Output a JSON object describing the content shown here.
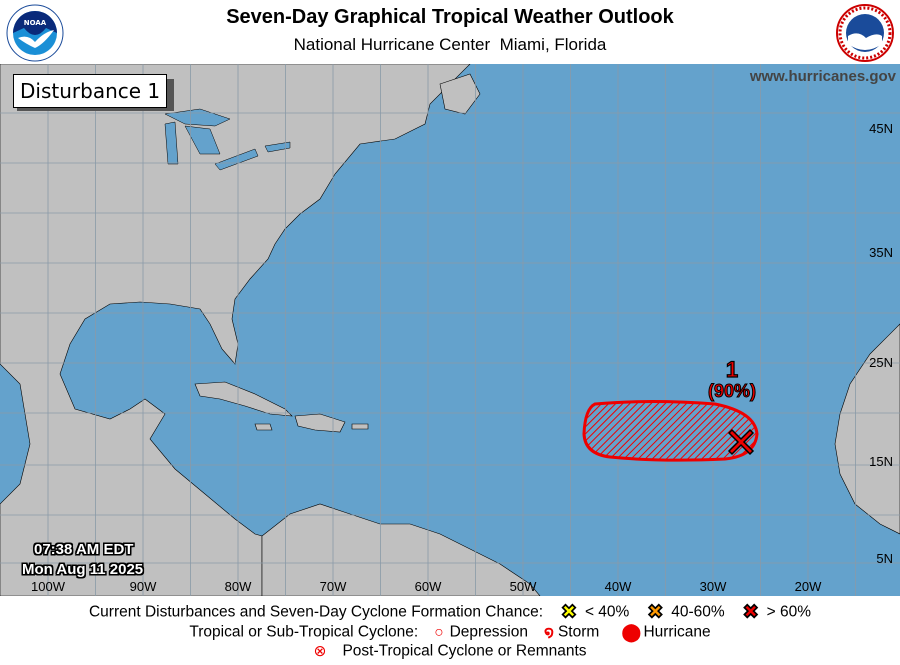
{
  "header": {
    "title": "Seven-Day Graphical Tropical Weather Outlook",
    "subtitle": "National Hurricane Center  Miami, Florida",
    "left_logo": "NOAA",
    "right_logo": "NATIONAL WEATHER SERVICE"
  },
  "map": {
    "panel_label": "Disturbance 1",
    "website": "www.hurricanes.gov",
    "timestamp_time": "07:38 AM EDT",
    "timestamp_date": "Mon Aug 11 2025",
    "lon_labels": [
      "100W",
      "90W",
      "80W",
      "70W",
      "60W",
      "50W",
      "40W",
      "30W",
      "20W"
    ],
    "lat_labels": [
      "45N",
      "35N",
      "25N",
      "15N",
      "5N"
    ],
    "colors": {
      "ocean": "#64a2cc",
      "land": "#c0c0c0",
      "grid": "#8a9aa8",
      "high_chance": "#e00000"
    },
    "disturbances": [
      {
        "id": "1",
        "chance": "(90%)",
        "category": "> 60%",
        "marker": "x-icon"
      }
    ]
  },
  "legend": {
    "row1_label": "Current Disturbances and Seven-Day Cyclone Formation Chance:",
    "low": "< 40%",
    "mid": "40-60%",
    "high": "> 60%",
    "low_color": "#ffff00",
    "mid_color": "#ff9900",
    "high_color": "#e00000",
    "row2_label": "Tropical or Sub-Tropical Cyclone:",
    "depression": "Depression",
    "storm": "Storm",
    "hurricane": "Hurricane",
    "post_tropical": "Post-Tropical Cyclone or Remnants"
  }
}
